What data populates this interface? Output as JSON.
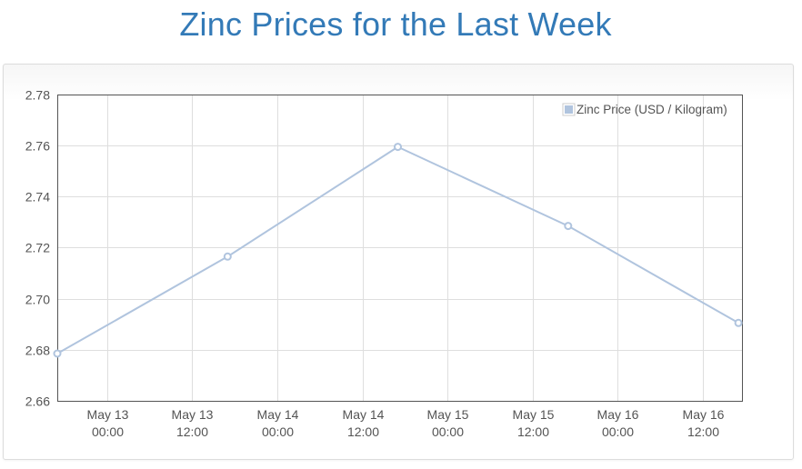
{
  "page": {
    "title": "Zinc Prices for the Last Week"
  },
  "chart_data": {
    "type": "line",
    "title": "Zinc Prices for the Last Week",
    "xlabel": "",
    "ylabel": "",
    "x_ticks": [
      [
        "May 13",
        "00:00"
      ],
      [
        "May 13",
        "12:00"
      ],
      [
        "May 14",
        "00:00"
      ],
      [
        "May 14",
        "12:00"
      ],
      [
        "May 15",
        "00:00"
      ],
      [
        "May 15",
        "12:00"
      ],
      [
        "May 16",
        "00:00"
      ],
      [
        "May 16",
        "12:00"
      ]
    ],
    "xlim": [
      "May 12 17:00",
      "May 16 17:30"
    ],
    "ylim": [
      2.66,
      2.78
    ],
    "y_ticks": [
      "2.66",
      "2.68",
      "2.70",
      "2.72",
      "2.74",
      "2.76",
      "2.78"
    ],
    "grid": true,
    "legend_position": "top-right",
    "series": [
      {
        "name": "Zinc Price (USD / Kilogram)",
        "color": "#b0c4de",
        "points": [
          {
            "x": "May 12 17:00",
            "y": 2.6785
          },
          {
            "x": "May 13 17:00",
            "y": 2.7165
          },
          {
            "x": "May 14 17:00",
            "y": 2.7595
          },
          {
            "x": "May 15 17:00",
            "y": 2.7285
          },
          {
            "x": "May 16 17:00",
            "y": 2.6905
          }
        ]
      }
    ]
  }
}
